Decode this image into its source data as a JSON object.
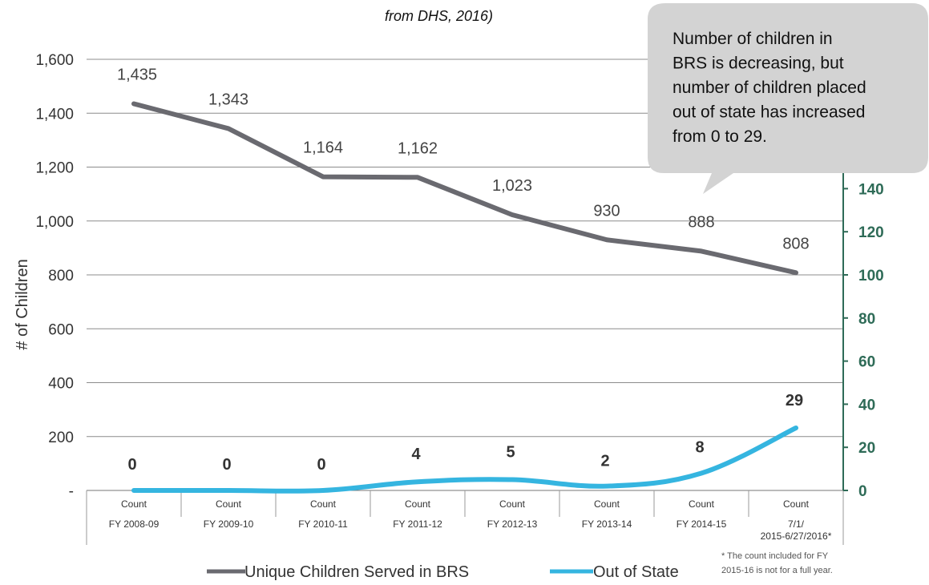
{
  "subtitle_fragment": "from DHS, 2016)",
  "callout": {
    "lines": [
      "Number of children in",
      "BRS is decreasing, but",
      "number of children placed",
      "out of state has increased",
      "from 0 to 29."
    ]
  },
  "footnote": {
    "lines": [
      "* The count included for FY",
      "2015-16 is not for a full year."
    ]
  },
  "colors": {
    "brs_line": "#6a6a70",
    "oos_line": "#35b5e0",
    "right_axis": "#2e6b57",
    "callout_fill": "#d3d3d3"
  },
  "chart_data": {
    "type": "line",
    "categories": [
      "FY 2008-09",
      "FY 2009-10",
      "FY 2010-11",
      "FY 2011-12",
      "FY 2012-13",
      "FY 2013-14",
      "FY 2014-15",
      "7/1/ 2015-6/27/2016*"
    ],
    "category_top_label": "Count",
    "ylabel": "# of Children",
    "ylim": [
      0,
      1600
    ],
    "y_ticks": [
      "-",
      "200",
      "400",
      "600",
      "800",
      "1,000",
      "1,200",
      "1,400",
      "1,600"
    ],
    "y2lim": [
      0,
      200
    ],
    "y2_ticks_visible": [
      "0",
      "20",
      "40",
      "60",
      "80",
      "100",
      "120",
      "140"
    ],
    "grid": true,
    "legend_position": "bottom",
    "series": [
      {
        "name": "Unique Children Served in BRS",
        "axis": "left",
        "values": [
          1435,
          1343,
          1164,
          1162,
          1023,
          930,
          888,
          808
        ],
        "labels": [
          "1,435",
          "1,343",
          "1,164",
          "1,162",
          "1,023",
          "930",
          "888",
          "808"
        ]
      },
      {
        "name": "Out of State",
        "axis": "right",
        "values": [
          0,
          0,
          0,
          4,
          5,
          2,
          8,
          29
        ],
        "labels": [
          "0",
          "0",
          "0",
          "4",
          "5",
          "2",
          "8",
          "29"
        ]
      }
    ]
  }
}
